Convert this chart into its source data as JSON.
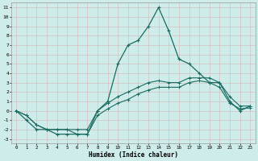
{
  "xlabel": "Humidex (Indice chaleur)",
  "bg_color": "#ceecea",
  "grid_color": "#d4c8c8",
  "line_color": "#1a6b60",
  "xlim": [
    -0.5,
    23.5
  ],
  "ylim": [
    -3.5,
    11.5
  ],
  "xticks": [
    0,
    1,
    2,
    3,
    4,
    5,
    6,
    7,
    8,
    9,
    10,
    11,
    12,
    13,
    14,
    15,
    16,
    17,
    18,
    19,
    20,
    21,
    22,
    23
  ],
  "yticks": [
    -3,
    -2,
    -1,
    0,
    1,
    2,
    3,
    4,
    5,
    6,
    7,
    8,
    9,
    10,
    11
  ],
  "line1_x": [
    0,
    1,
    2,
    3,
    4,
    5,
    6,
    7,
    8,
    9,
    10,
    11,
    12,
    13,
    14,
    15,
    16,
    17,
    18,
    19,
    20,
    21,
    22,
    23
  ],
  "line1_y": [
    0,
    -1,
    -2,
    -2,
    -2.5,
    -2.5,
    -2.5,
    -2.5,
    0,
    1,
    5,
    7,
    7.5,
    9,
    11,
    8.5,
    5.5,
    5,
    4,
    3,
    3,
    1,
    0,
    0.5
  ],
  "line2_x": [
    0,
    1,
    2,
    3,
    4,
    5,
    6,
    7,
    8,
    9,
    10,
    11,
    12,
    13,
    14,
    15,
    16,
    17,
    18,
    19,
    20,
    21,
    22,
    23
  ],
  "line2_y": [
    0,
    -0.5,
    -1.5,
    -2,
    -2,
    -2,
    -2,
    -2,
    0,
    0.8,
    1.5,
    2,
    2.5,
    3,
    3.2,
    3,
    3,
    3.5,
    3.5,
    3.5,
    3,
    1.5,
    0.5,
    0.5
  ],
  "line3_x": [
    0,
    1,
    2,
    3,
    4,
    5,
    6,
    7,
    8,
    9,
    10,
    11,
    12,
    13,
    14,
    15,
    16,
    17,
    18,
    19,
    20,
    21,
    22,
    23
  ],
  "line3_y": [
    0,
    -0.5,
    -1.5,
    -2,
    -2,
    -2,
    -2.5,
    -2.5,
    -0.5,
    0.2,
    0.8,
    1.2,
    1.8,
    2.2,
    2.5,
    2.5,
    2.5,
    3,
    3.2,
    3,
    2.5,
    0.8,
    0.2,
    0.3
  ]
}
